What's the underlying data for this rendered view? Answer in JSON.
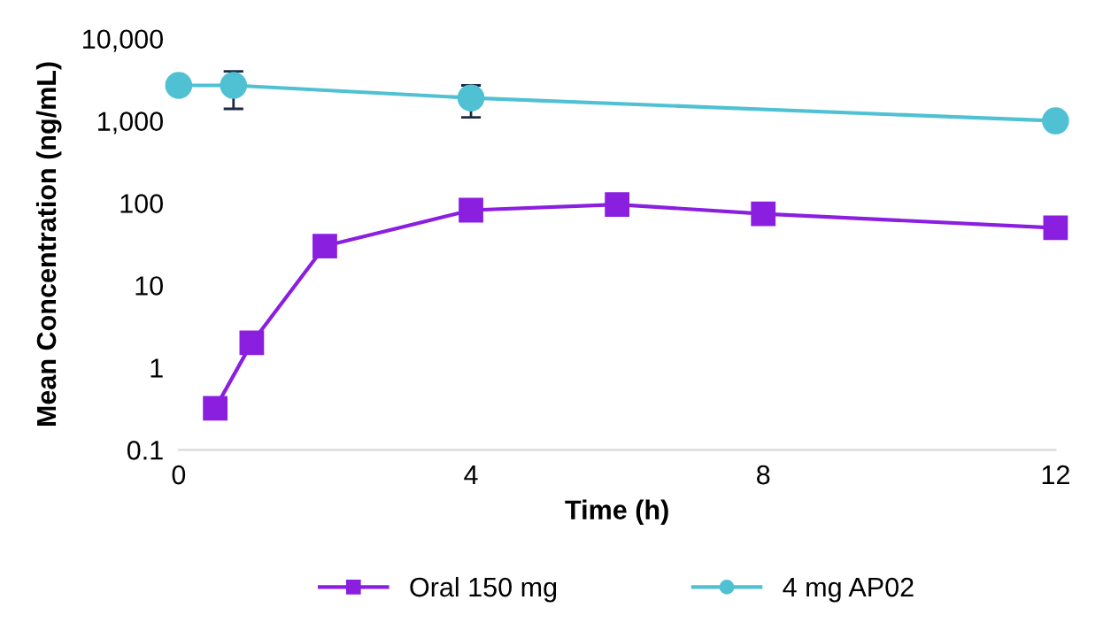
{
  "chart_data": {
    "type": "line",
    "xlabel": "Time (h)",
    "ylabel": "Mean Concentration (ng/mL)",
    "log": "y",
    "xlim": [
      0,
      12
    ],
    "xticks": [
      0,
      4,
      8,
      12
    ],
    "ylim": [
      0.1,
      10000
    ],
    "yticks": [
      {
        "value": 0.1,
        "label": "0.1"
      },
      1,
      10,
      100,
      {
        "value": 1000,
        "label": "1,000"
      },
      {
        "value": 10000,
        "label": "10,000"
      }
    ],
    "legend": "bottom",
    "grid": false,
    "series": [
      {
        "name": "Oral 150 mg",
        "color": "#8a1fe0",
        "marker": "square",
        "x": [
          0.5,
          1,
          2,
          4,
          6,
          8,
          12
        ],
        "values": [
          0.32,
          2.0,
          30,
          82,
          96,
          74,
          50
        ]
      },
      {
        "name": "4 mg AP02",
        "color": "#4fc1d3",
        "marker": "circle",
        "x": [
          0,
          0.75,
          4,
          12
        ],
        "values": [
          2700,
          2700,
          1900,
          1000
        ],
        "errors": [
          null,
          [
            1400,
            4000
          ],
          [
            1100,
            2700
          ],
          null
        ]
      }
    ]
  }
}
